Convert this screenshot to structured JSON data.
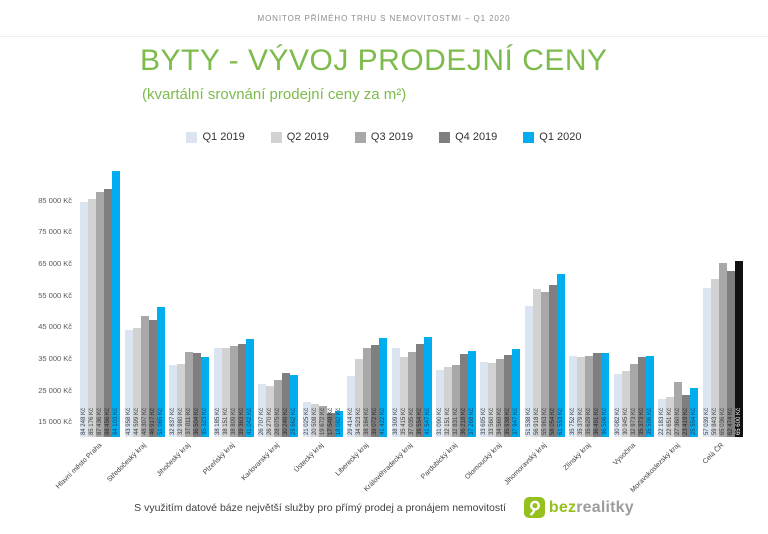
{
  "header": {
    "title": "MONITOR PŘÍMÉHO TRHU S NEMOVITOSTMI – Q1 2020"
  },
  "title": "BYTY - VÝVOJ PRODEJNÍ CENY",
  "subtitle": "(kvartální srovnání prodejní ceny za m²)",
  "colors": {
    "accent_green": "#7cbb4c",
    "highlight_cyan": "#00aeef",
    "highlight_black": "#111111"
  },
  "chart_data": {
    "type": "bar",
    "title": "BYTY - VÝVOJ PRODEJNÍ CENY",
    "subtitle": "(kvartální srovnání prodejní ceny za m²)",
    "unit": "Kč",
    "xlabel": "",
    "ylabel": "",
    "grid": false,
    "legend_position": "top",
    "y_min": 10000,
    "y_max": 96000,
    "y_ticks": [
      15000,
      25000,
      35000,
      45000,
      55000,
      65000,
      75000,
      85000
    ],
    "categories": [
      "Hlavní město Praha",
      "Středočeský kraj",
      "Jihočeský kraj",
      "Plzeňský kraj",
      "Karlovarský kraj",
      "Ústecký kraj",
      "Liberecký kraj",
      "Královéhradecký kraj",
      "Pardubický kraj",
      "Olomoucký kraj",
      "Jihomoravský kraj",
      "Zlínský kraj",
      "Vysočina",
      "Moravskoslezský kraj",
      "Celá ČR"
    ],
    "series": [
      {
        "name": "Q1 2019",
        "color": "#dbe5f1",
        "label_color": "#3f3f3f",
        "values": [
          84248,
          43958,
          32837,
          38185,
          26707,
          21025,
          29414,
          38309,
          31090,
          33695,
          51538,
          35752,
          30082,
          22183,
          57039
        ]
      },
      {
        "name": "Q2 2019",
        "color": "#d2d2d2",
        "label_color": "#3f3f3f",
        "values": [
          85176,
          44599,
          32980,
          38151,
          26270,
          20508,
          34523,
          35415,
          32151,
          33560,
          56918,
          35379,
          30945,
          22651,
          59843
        ]
      },
      {
        "name": "Q3 2019",
        "color": "#a8a8a8",
        "label_color": "#3f3f3f",
        "values": [
          87436,
          48307,
          37011,
          38809,
          28075,
          19672,
          38164,
          37035,
          32831,
          34569,
          55963,
          35629,
          32973,
          27360,
          65036
        ]
      },
      {
        "name": "Q4 2019",
        "color": "#7f7f7f",
        "label_color": "#2b2b2b",
        "values": [
          88456,
          46917,
          36504,
          39363,
          30249,
          17548,
          39072,
          39554,
          36218,
          35938,
          58054,
          36491,
          35373,
          23419,
          62474
        ]
      },
      {
        "name": "Q1 2020",
        "color": "#00aeef",
        "label_color": "#1b3f5e",
        "values": [
          94103,
          51065,
          35323,
          41042,
          29662,
          18082,
          41422,
          41547,
          37268,
          37947,
          61553,
          36506,
          35596,
          25554,
          65600
        ]
      }
    ],
    "highlight": {
      "category": "Celá ČR",
      "category_index": 14,
      "series": "Q1 2020",
      "series_index": 4,
      "bar_color": "#111111",
      "label_color": "#ffffff",
      "value_label": "65 600 Kč"
    }
  },
  "footer": {
    "note": "S využitím datové báze největší služby pro přímý prodej a pronájem nemovitostí",
    "logo_bold": "bez",
    "logo_light": "realitky"
  }
}
